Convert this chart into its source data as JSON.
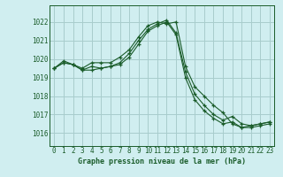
{
  "title": "Graphe pression niveau de la mer (hPa)",
  "bg_color": "#d0eef0",
  "grid_color": "#a8cccc",
  "line_color": "#1a5c2a",
  "hours": [
    0,
    1,
    2,
    3,
    4,
    5,
    6,
    7,
    8,
    9,
    10,
    11,
    12,
    13,
    14,
    15,
    16,
    17,
    18,
    19,
    20,
    21,
    22,
    23
  ],
  "series": [
    [
      1019.5,
      1019.8,
      1019.7,
      1019.5,
      1019.8,
      1019.8,
      1019.8,
      1020.1,
      1020.5,
      1021.2,
      1021.8,
      1022.0,
      1021.9,
      1022.0,
      1019.6,
      1018.5,
      1018.0,
      1017.5,
      1017.1,
      1016.5,
      1016.3,
      1016.4,
      1016.5,
      1016.6
    ],
    [
      1019.5,
      1019.8,
      1019.7,
      1019.4,
      1019.6,
      1019.5,
      1019.6,
      1019.8,
      1020.3,
      1021.0,
      1021.6,
      1021.9,
      1022.1,
      1021.4,
      1019.3,
      1018.1,
      1017.5,
      1017.0,
      1016.7,
      1016.9,
      1016.5,
      1016.4,
      1016.5,
      1016.6
    ],
    [
      1019.5,
      1019.9,
      1019.7,
      1019.4,
      1019.4,
      1019.5,
      1019.6,
      1019.7,
      1020.1,
      1020.8,
      1021.5,
      1021.8,
      1022.0,
      1021.3,
      1019.0,
      1017.8,
      1017.2,
      1016.8,
      1016.5,
      1016.6,
      1016.3,
      1016.3,
      1016.4,
      1016.5
    ]
  ],
  "ylim_min": 1015.3,
  "ylim_max": 1022.9,
  "yticks": [
    1016,
    1017,
    1018,
    1019,
    1020,
    1021,
    1022
  ],
  "font_color": "#1a5c2a",
  "tick_fontsize": 5.5,
  "label_fontsize": 6.0
}
